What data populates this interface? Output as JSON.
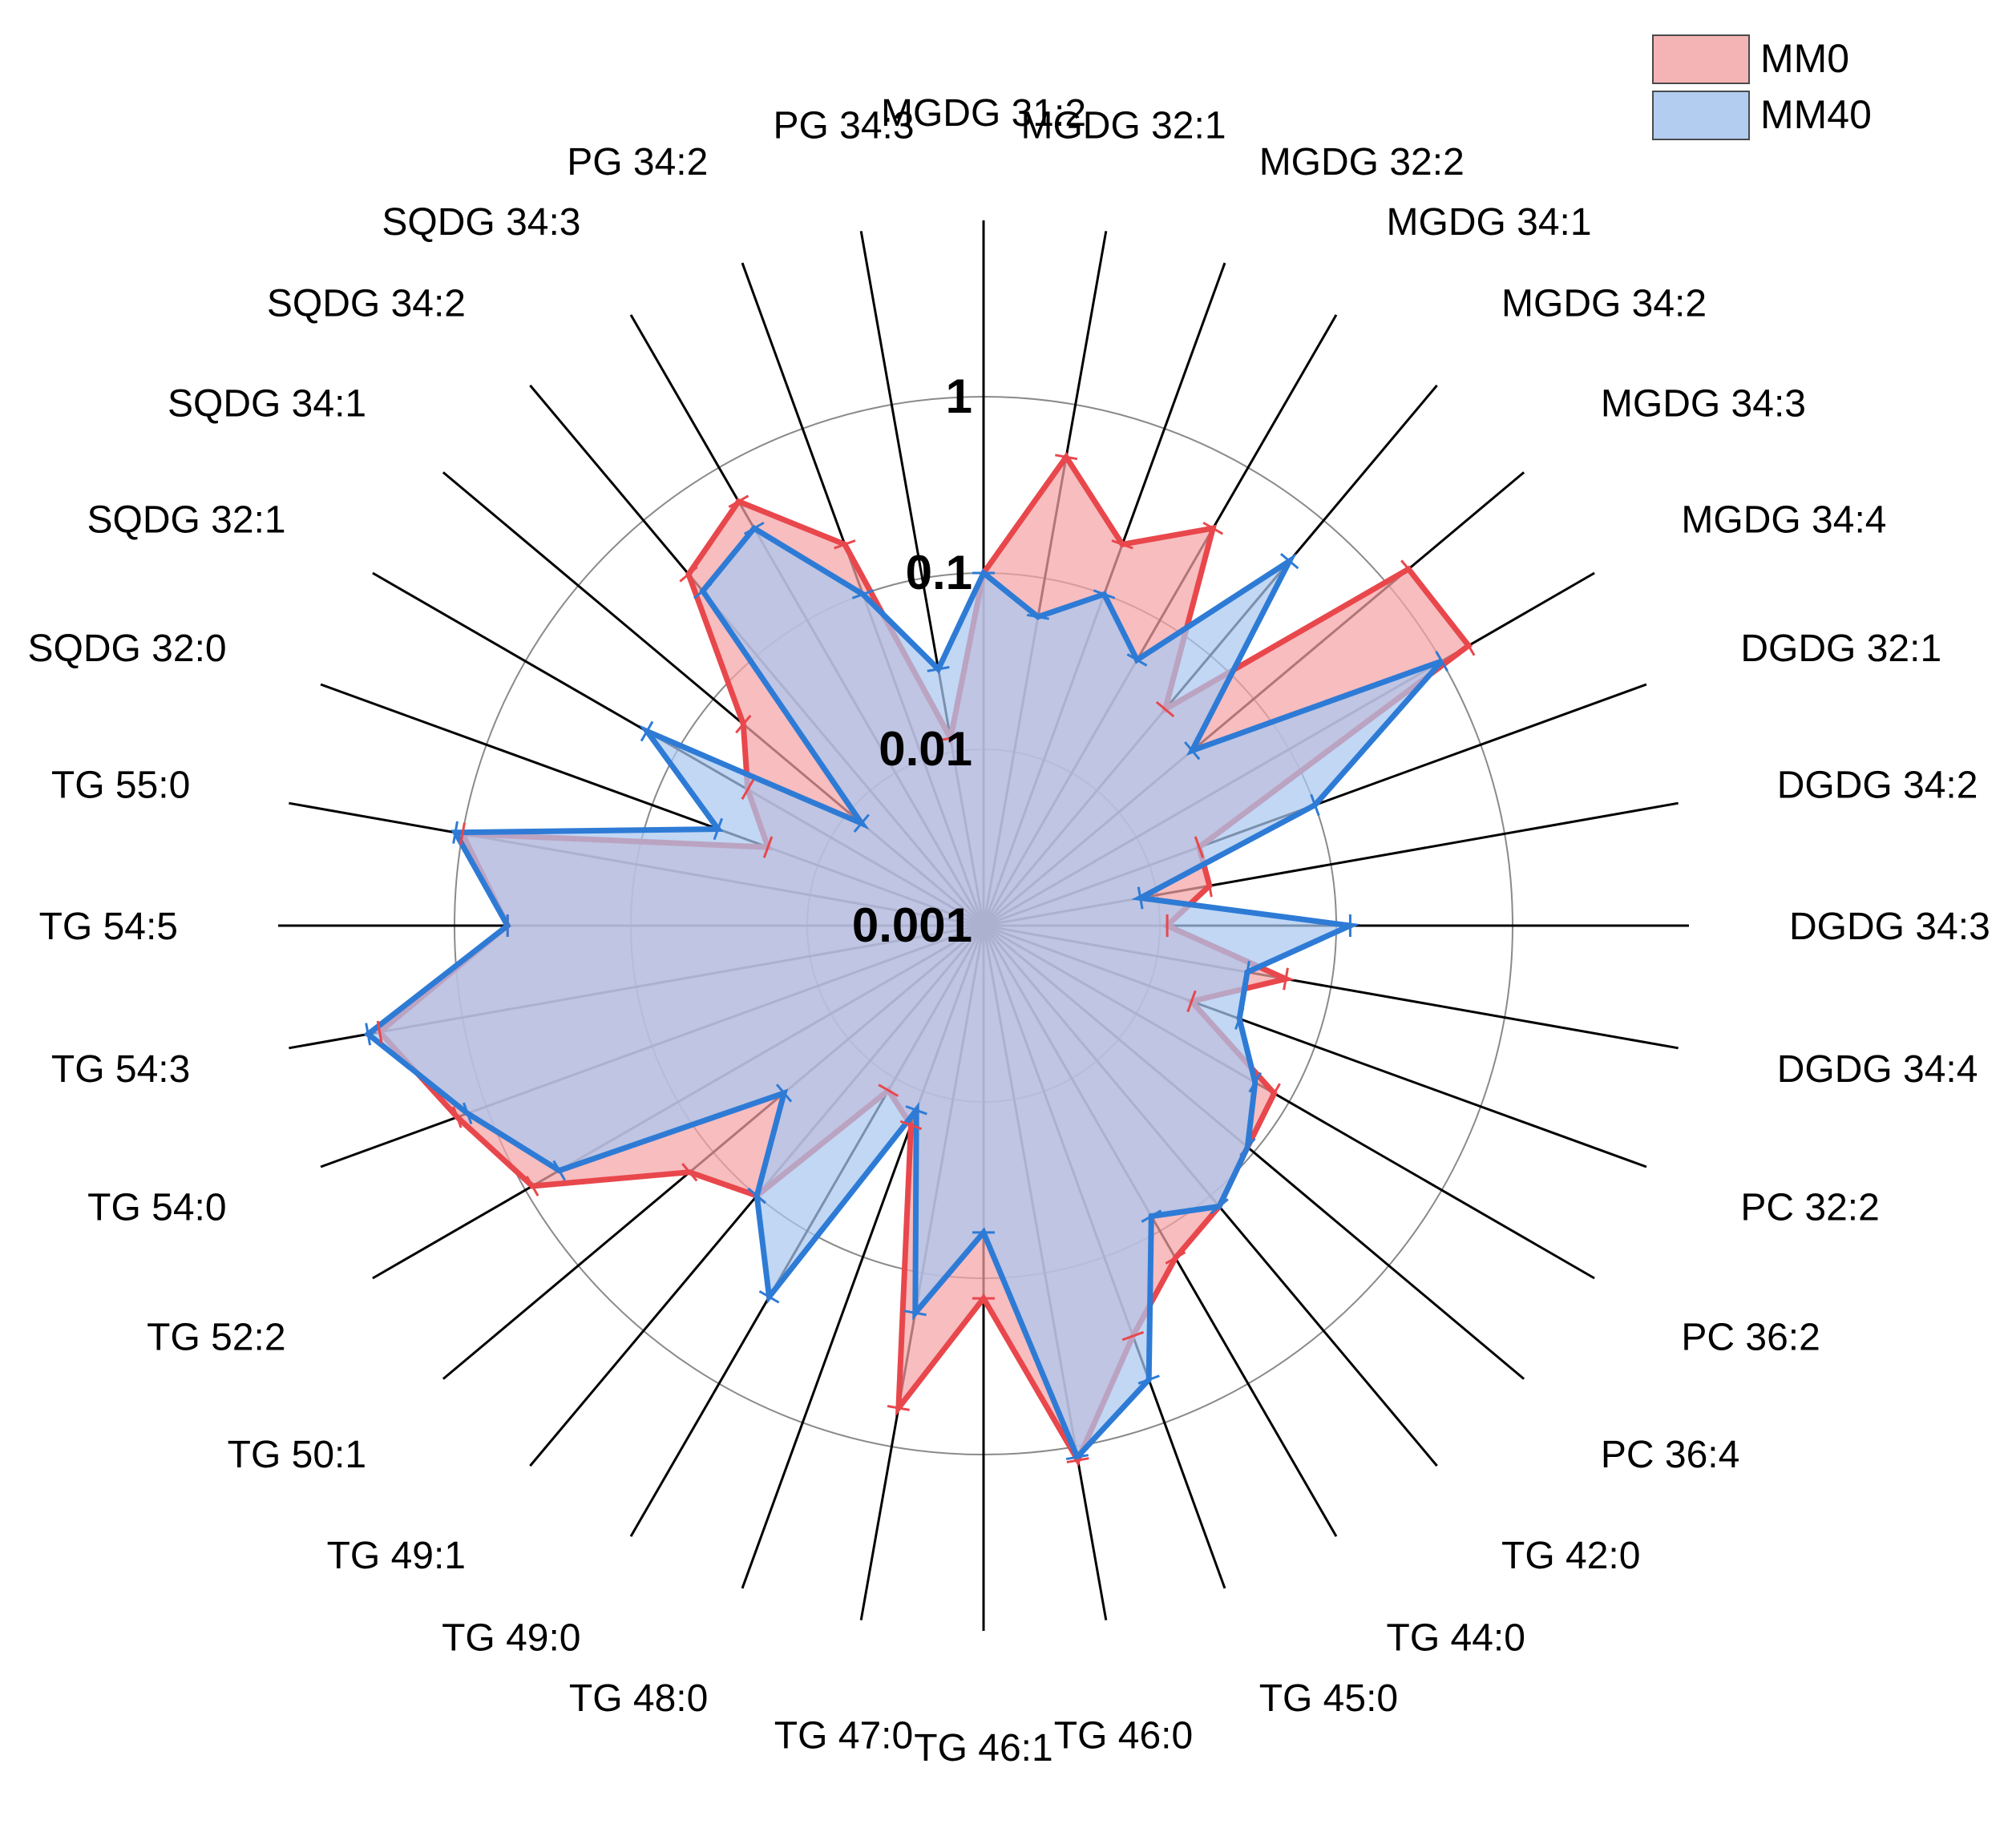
{
  "chart_data": {
    "type": "radar",
    "scale": "log",
    "rlim": [
      0.001,
      10
    ],
    "ticks": [
      {
        "value": 1,
        "label": "1"
      },
      {
        "value": 0.1,
        "label": "0.1"
      },
      {
        "value": 0.01,
        "label": "0.01"
      },
      {
        "value": 0.001,
        "label": "0.001"
      }
    ],
    "categories": [
      "MGDG 31:2",
      "MGDG 32:1",
      "MGDG 32:2",
      "MGDG 34:1",
      "MGDG 34:2",
      "MGDG 34:3",
      "MGDG 34:4",
      "DGDG 32:1",
      "DGDG 34:2",
      "DGDG 34:3",
      "DGDG 34:4",
      "PC 32:2",
      "PC 36:2",
      "PC 36:4",
      "TG 42:0",
      "TG 44:0",
      "TG 45:0",
      "TG 46:0",
      "TG 46:1",
      "TG 47:0",
      "TG 48:0",
      "TG 49:0",
      "TG 49:1",
      "TG 50:1",
      "TG 52:2",
      "TG 54:0",
      "TG 54:3",
      "TG 54:5",
      "TG 55:0",
      "SQDG 32:0",
      "SQDG 32:1",
      "SQDG 34:1",
      "SQDG 34:2",
      "SQDG 34:3",
      "PG 34:2",
      "PG 34:3"
    ],
    "series": [
      {
        "name": "MM0",
        "color": "#e8474c",
        "fill": "#f4a3a6",
        "values": [
          0.1,
          0.5,
          0.2,
          0.4,
          0.04,
          1.4,
          1.5,
          0.02,
          0.02,
          0.011,
          0.055,
          0.018,
          0.08,
          0.09,
          0.12,
          0.15,
          0.3,
          1.2,
          0.13,
          0.6,
          0.016,
          0.012,
          0.1,
          0.15,
          0.9,
          1.5,
          3.0,
          0.5,
          1.0,
          0.02,
          0.035,
          0.06,
          0.4,
          0.6,
          0.2,
          0.012
        ]
      },
      {
        "name": "MM40",
        "color": "#2e7bd6",
        "fill": "#a9c7f0",
        "values": [
          0.1,
          0.06,
          0.1,
          0.055,
          0.5,
          0.035,
          1.0,
          0.1,
          0.008,
          0.12,
          0.033,
          0.035,
          0.06,
          0.09,
          0.12,
          0.08,
          0.55,
          1.15,
          0.055,
          0.17,
          0.013,
          0.27,
          0.1,
          0.03,
          0.6,
          1.3,
          3.5,
          0.5,
          1.1,
          0.04,
          0.16,
          0.008,
          0.3,
          0.4,
          0.1,
          0.03
        ]
      }
    ],
    "legend": "top-right"
  }
}
